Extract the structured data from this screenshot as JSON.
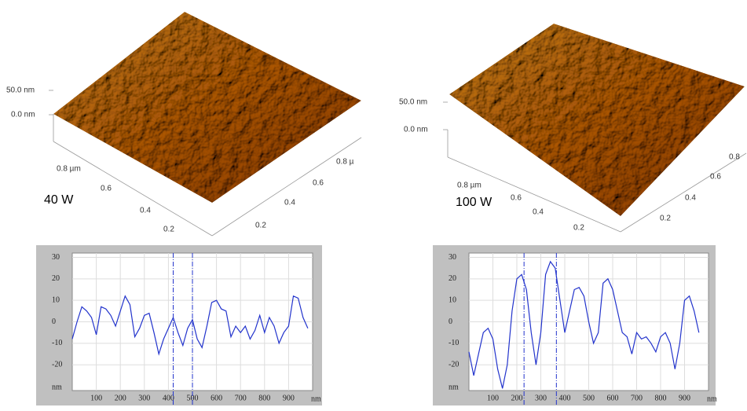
{
  "afm": [
    {
      "label": "40 W",
      "z_labels": [
        "50.0 nm",
        "0.0 nm"
      ],
      "y_labels": [
        "0.8 µm",
        "0.6",
        "0.4",
        "0.2"
      ],
      "x_labels": [
        "0.8 µ",
        "0.6",
        "0.4",
        "0.2"
      ]
    },
    {
      "label": "100 W",
      "z_labels": [
        "50.0 nm",
        "0.0 nm"
      ],
      "y_labels": [
        "0.8 µm",
        "0.6",
        "0.4",
        "0.2"
      ],
      "x_labels": [
        "0.8",
        "0.6",
        "0.4",
        "0.2"
      ]
    }
  ],
  "chart_data": [
    {
      "type": "line",
      "x_label": "nm",
      "y_label": "nm",
      "color": "#2233cc",
      "xlim": [
        0,
        1000
      ],
      "ylim": [
        -32,
        32
      ],
      "xticks": [
        100,
        200,
        300,
        400,
        500,
        600,
        700,
        800,
        900
      ],
      "yticks": [
        30,
        20,
        10,
        0,
        -10,
        -20
      ],
      "markers": [
        420,
        500
      ],
      "x": [
        0,
        20,
        40,
        60,
        80,
        100,
        120,
        140,
        160,
        180,
        200,
        220,
        240,
        260,
        280,
        300,
        320,
        340,
        360,
        380,
        400,
        420,
        440,
        460,
        480,
        500,
        520,
        540,
        560,
        580,
        600,
        620,
        640,
        660,
        680,
        700,
        720,
        740,
        760,
        780,
        800,
        820,
        840,
        860,
        880,
        900,
        920,
        940,
        960,
        980
      ],
      "y": [
        -8,
        0,
        7,
        5,
        2,
        -6,
        7,
        6,
        3,
        -2,
        5,
        12,
        8,
        -7,
        -3,
        3,
        4,
        -5,
        -15,
        -8,
        -3,
        2,
        -5,
        -11,
        -3,
        1,
        -8,
        -12,
        -2,
        9,
        10,
        6,
        5,
        -7,
        -2,
        -5,
        -2,
        -8,
        -4,
        3,
        -5,
        2,
        -2,
        -10,
        -5,
        -2,
        12,
        11,
        2,
        -3
      ]
    },
    {
      "type": "line",
      "x_label": "nm",
      "y_label": "nm",
      "color": "#2233cc",
      "xlim": [
        0,
        1000
      ],
      "ylim": [
        -32,
        32
      ],
      "xticks": [
        100,
        200,
        300,
        400,
        500,
        600,
        700,
        800,
        900
      ],
      "yticks": [
        30,
        20,
        10,
        0,
        -10,
        -20
      ],
      "markers": [
        230,
        365
      ],
      "x": [
        0,
        20,
        40,
        60,
        80,
        100,
        120,
        140,
        160,
        180,
        200,
        220,
        240,
        260,
        280,
        300,
        320,
        340,
        360,
        380,
        400,
        420,
        440,
        460,
        480,
        500,
        520,
        540,
        560,
        580,
        600,
        620,
        640,
        660,
        680,
        700,
        720,
        740,
        760,
        780,
        800,
        820,
        840,
        860,
        880,
        900,
        920,
        940,
        960
      ],
      "y": [
        -14,
        -25,
        -15,
        -5,
        -3,
        -8,
        -22,
        -31,
        -20,
        5,
        20,
        22,
        15,
        -5,
        -20,
        -5,
        22,
        28,
        25,
        10,
        -5,
        5,
        15,
        16,
        12,
        0,
        -10,
        -5,
        18,
        20,
        15,
        5,
        -5,
        -7,
        -15,
        -5,
        -8,
        -7,
        -10,
        -14,
        -7,
        -5,
        -10,
        -22,
        -10,
        10,
        12,
        5,
        -5
      ]
    }
  ]
}
